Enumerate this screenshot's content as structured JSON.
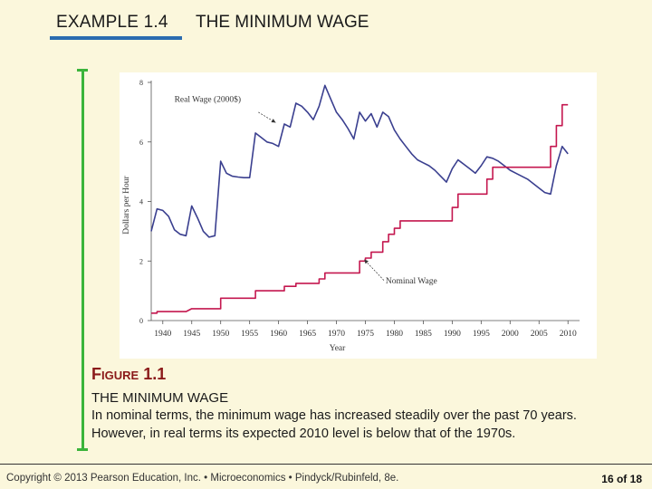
{
  "header": {
    "example": "EXAMPLE 1.4",
    "title": "THE MINIMUM WAGE",
    "accent": "#2b6cb0"
  },
  "figure": {
    "label_small_f": "F",
    "label_rest": "IGURE",
    "label_number": "1.1",
    "subtitle": "THE MINIMUM WAGE",
    "description": "In nominal terms, the minimum wage has increased steadily over the past 70 years. However, in real terms its expected 2010 level is below that of the 1970s."
  },
  "chart_data": {
    "type": "line",
    "title": "",
    "xlabel": "Year",
    "ylabel": "Dollars per Hour",
    "xlim": [
      1938,
      2012
    ],
    "ylim": [
      0,
      8
    ],
    "xticks": [
      1940,
      1945,
      1950,
      1955,
      1960,
      1965,
      1970,
      1975,
      1980,
      1985,
      1990,
      1995,
      2000,
      2005,
      2010
    ],
    "yticks": [
      0,
      2,
      4,
      6,
      8
    ],
    "colors": {
      "real": "#3a3f8f",
      "nominal": "#c4174f"
    },
    "series": [
      {
        "name": "Real Wage (2000$)",
        "x": [
          1938,
          1939,
          1940,
          1941,
          1942,
          1943,
          1944,
          1945,
          1946,
          1947,
          1948,
          1949,
          1950,
          1951,
          1952,
          1953,
          1954,
          1955,
          1956,
          1957,
          1958,
          1959,
          1960,
          1961,
          1962,
          1963,
          1964,
          1965,
          1966,
          1967,
          1968,
          1969,
          1970,
          1971,
          1972,
          1973,
          1974,
          1975,
          1976,
          1977,
          1978,
          1979,
          1980,
          1981,
          1982,
          1983,
          1984,
          1985,
          1986,
          1987,
          1988,
          1989,
          1990,
          1991,
          1992,
          1993,
          1994,
          1995,
          1996,
          1997,
          1998,
          1999,
          2000,
          2001,
          2002,
          2003,
          2004,
          2005,
          2006,
          2007,
          2008,
          2009,
          2010
        ],
        "values": [
          3.0,
          3.75,
          3.7,
          3.5,
          3.05,
          2.9,
          2.85,
          3.85,
          3.45,
          3.0,
          2.8,
          2.85,
          5.35,
          4.95,
          4.85,
          4.82,
          4.8,
          4.8,
          6.3,
          6.15,
          6.0,
          5.95,
          5.85,
          6.6,
          6.5,
          7.3,
          7.2,
          7.0,
          6.75,
          7.2,
          7.9,
          7.45,
          7.0,
          6.75,
          6.45,
          6.1,
          7.0,
          6.7,
          6.95,
          6.5,
          7.0,
          6.85,
          6.4,
          6.1,
          5.85,
          5.6,
          5.4,
          5.3,
          5.2,
          5.05,
          4.85,
          4.65,
          5.1,
          5.4,
          5.25,
          5.1,
          4.95,
          5.2,
          5.5,
          5.45,
          5.35,
          5.2,
          5.05,
          4.95,
          4.85,
          4.75,
          4.6,
          4.45,
          4.3,
          4.25,
          5.2,
          5.85,
          5.6
        ]
      },
      {
        "name": "Nominal Wage",
        "x": [
          1938,
          1939,
          1939,
          1944,
          1945,
          1945,
          1950,
          1950,
          1956,
          1956,
          1961,
          1961,
          1963,
          1963,
          1967,
          1967,
          1968,
          1968,
          1974,
          1974,
          1975,
          1975,
          1976,
          1976,
          1978,
          1978,
          1979,
          1979,
          1980,
          1980,
          1981,
          1981,
          1990,
          1990,
          1991,
          1991,
          1996,
          1996,
          1997,
          1997,
          2007,
          2007,
          2008,
          2008,
          2009,
          2009,
          2010
        ],
        "values": [
          0.25,
          0.25,
          0.3,
          0.3,
          0.4,
          0.4,
          0.4,
          0.75,
          0.75,
          1.0,
          1.0,
          1.15,
          1.15,
          1.25,
          1.25,
          1.4,
          1.4,
          1.6,
          1.6,
          2.0,
          2.0,
          2.1,
          2.1,
          2.3,
          2.3,
          2.65,
          2.65,
          2.9,
          2.9,
          3.1,
          3.1,
          3.35,
          3.35,
          3.8,
          3.8,
          4.25,
          4.25,
          4.75,
          4.75,
          5.15,
          5.15,
          5.85,
          5.85,
          6.55,
          6.55,
          7.25,
          7.25
        ]
      }
    ],
    "annotations": [
      {
        "text": "Real Wage (2000$)",
        "series": "Real Wage (2000$)"
      },
      {
        "text": "Nominal Wage",
        "series": "Nominal Wage"
      }
    ]
  },
  "footer": {
    "copyright": "Copyright © 2013 Pearson Education, Inc. • Microeconomics • Pindyck/Rubinfeld, 8e.",
    "page": "16 of 18"
  }
}
